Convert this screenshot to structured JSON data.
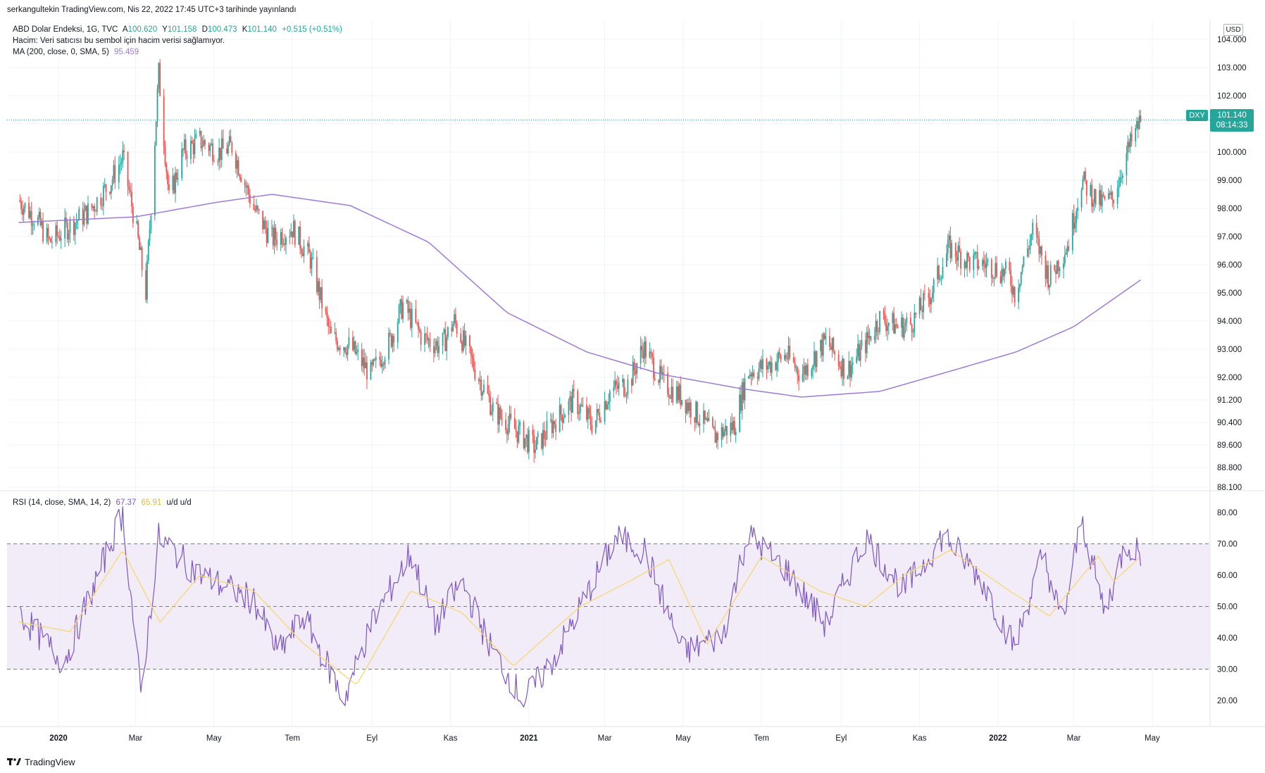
{
  "header": {
    "publish_text": "serkangultekin TradingView.com, Nis 22, 2022 17:45 UTC+3 tarihinde yayınlandı"
  },
  "legend": {
    "symbol": "ABD Dolar Endeksi, 1G, TVC",
    "open_label": "A",
    "open_value": "100.620",
    "high_label": "Y",
    "high_value": "101.158",
    "low_label": "D",
    "low_value": "100.473",
    "close_label": "K",
    "close_value": "101.140",
    "change": "+0.515 (+0.51%)",
    "volume_note": "Hacim: Veri satıcısı bu sembol için hacim verisi sağlamıyor.",
    "ma_label": "MA (200, close, 0, SMA, 5)",
    "ma_value": "95.459",
    "rsi_label": "RSI (14, close, SMA, 14, 2)",
    "rsi_value": "67.37",
    "rsi_ma_value": "65.91",
    "rsi_extra": "u/d  u/d"
  },
  "price_axis": {
    "currency": "USD"
  },
  "last_price": {
    "symbol": "DXY",
    "price": "101.140",
    "countdown": "08:14:33"
  },
  "footer": {
    "brand": "TradingView"
  },
  "colors": {
    "up": "#26a69a",
    "down": "#ef5350",
    "ma": "#9f79d9",
    "rsi": "#7e57c2",
    "rsi_ma": "#f7d774",
    "rsi_band": "#ede7f6"
  },
  "chart_data": [
    {
      "type": "candlestick",
      "ylim": [
        88.1,
        104.0
      ],
      "y_ticks": [
        "104.000",
        "103.000",
        "102.000",
        "101.000",
        "100.000",
        "99.000",
        "98.000",
        "97.000",
        "96.000",
        "95.000",
        "94.000",
        "93.000",
        "92.000",
        "91.200",
        "90.400",
        "89.600",
        "88.800",
        "88.100"
      ],
      "x_ticks": [
        "2020",
        "Mar",
        "May",
        "Tem",
        "Eyl",
        "Kas",
        "2021",
        "Mar",
        "May",
        "Tem",
        "Eyl",
        "Kas",
        "2022",
        "Mar",
        "May"
      ],
      "close_path": [
        [
          "2019-12-01",
          98.3
        ],
        [
          "2019-12-15",
          97.6
        ],
        [
          "2019-12-25",
          96.8
        ],
        [
          "2020-01-10",
          97.4
        ],
        [
          "2020-01-25",
          97.9
        ],
        [
          "2020-02-10",
          98.9
        ],
        [
          "2020-02-20",
          99.8
        ],
        [
          "2020-03-01",
          97.4
        ],
        [
          "2020-03-09",
          95.0
        ],
        [
          "2020-03-19",
          102.8
        ],
        [
          "2020-03-27",
          98.3
        ],
        [
          "2020-04-07",
          100.0
        ],
        [
          "2020-04-20",
          100.4
        ],
        [
          "2020-05-05",
          100.0
        ],
        [
          "2020-05-15",
          100.2
        ],
        [
          "2020-06-01",
          98.0
        ],
        [
          "2020-06-15",
          96.9
        ],
        [
          "2020-07-01",
          97.3
        ],
        [
          "2020-07-15",
          96.2
        ],
        [
          "2020-07-31",
          93.4
        ],
        [
          "2020-08-15",
          93.1
        ],
        [
          "2020-08-31",
          92.1
        ],
        [
          "2020-09-15",
          93.3
        ],
        [
          "2020-09-25",
          94.6
        ],
        [
          "2020-10-10",
          93.4
        ],
        [
          "2020-10-25",
          93.1
        ],
        [
          "2020-11-04",
          94.0
        ],
        [
          "2020-11-20",
          92.3
        ],
        [
          "2020-12-05",
          90.8
        ],
        [
          "2020-12-20",
          90.2
        ],
        [
          "2021-01-06",
          89.5
        ],
        [
          "2021-01-20",
          90.4
        ],
        [
          "2021-02-05",
          91.2
        ],
        [
          "2021-02-20",
          90.3
        ],
        [
          "2021-03-05",
          91.5
        ],
        [
          "2021-03-20",
          91.8
        ],
        [
          "2021-03-31",
          93.1
        ],
        [
          "2021-04-15",
          91.8
        ],
        [
          "2021-04-30",
          91.3
        ],
        [
          "2021-05-15",
          90.5
        ],
        [
          "2021-05-25",
          89.9
        ],
        [
          "2021-06-10",
          90.3
        ],
        [
          "2021-06-20",
          92.2
        ],
        [
          "2021-07-05",
          92.4
        ],
        [
          "2021-07-20",
          92.8
        ],
        [
          "2021-08-01",
          92.1
        ],
        [
          "2021-08-20",
          93.3
        ],
        [
          "2021-09-05",
          92.2
        ],
        [
          "2021-09-20",
          93.2
        ],
        [
          "2021-10-01",
          94.1
        ],
        [
          "2021-10-15",
          93.8
        ],
        [
          "2021-10-25",
          93.9
        ],
        [
          "2021-11-10",
          95.0
        ],
        [
          "2021-11-24",
          96.6
        ],
        [
          "2021-12-10",
          96.1
        ],
        [
          "2021-12-25",
          96.0
        ],
        [
          "2022-01-10",
          95.6
        ],
        [
          "2022-01-14",
          95.0
        ],
        [
          "2022-01-28",
          97.2
        ],
        [
          "2022-02-10",
          95.5
        ],
        [
          "2022-02-25",
          96.8
        ],
        [
          "2022-03-07",
          99.0
        ],
        [
          "2022-03-20",
          98.2
        ],
        [
          "2022-03-31",
          98.3
        ],
        [
          "2022-04-10",
          99.8
        ],
        [
          "2022-04-22",
          101.14
        ]
      ],
      "ma_path": [
        [
          "2019-12-01",
          97.5
        ],
        [
          "2020-03-01",
          97.7
        ],
        [
          "2020-05-01",
          98.2
        ],
        [
          "2020-06-15",
          98.5
        ],
        [
          "2020-08-15",
          98.1
        ],
        [
          "2020-10-15",
          96.8
        ],
        [
          "2020-12-15",
          94.3
        ],
        [
          "2021-02-15",
          92.9
        ],
        [
          "2021-04-15",
          92.1
        ],
        [
          "2021-06-15",
          91.6
        ],
        [
          "2021-08-01",
          91.3
        ],
        [
          "2021-10-01",
          91.5
        ],
        [
          "2021-12-01",
          92.3
        ],
        [
          "2022-01-15",
          92.9
        ],
        [
          "2022-03-01",
          93.8
        ],
        [
          "2022-04-22",
          95.46
        ]
      ]
    },
    {
      "type": "line",
      "ylim": [
        11,
        83
      ],
      "y_ticks": [
        "80.00",
        "70.00",
        "60.00",
        "50.00",
        "40.00",
        "30.00",
        "20.00"
      ],
      "levels": [
        70,
        50,
        30
      ],
      "series": [
        {
          "name": "RSI",
          "values": [
            [
              "2019-12-01",
              48
            ],
            [
              "2020-01-05",
              32
            ],
            [
              "2020-02-20",
              80
            ],
            [
              "2020-03-05",
              22
            ],
            [
              "2020-03-19",
              72
            ],
            [
              "2020-04-20",
              60
            ],
            [
              "2020-06-01",
              52
            ],
            [
              "2020-06-20",
              35
            ],
            [
              "2020-07-10",
              47
            ],
            [
              "2020-08-10",
              20
            ],
            [
              "2020-09-01",
              45
            ],
            [
              "2020-10-01",
              67
            ],
            [
              "2020-10-20",
              44
            ],
            [
              "2020-11-10",
              58
            ],
            [
              "2020-12-01",
              38
            ],
            [
              "2020-12-28",
              20
            ],
            [
              "2021-01-20",
              33
            ],
            [
              "2021-03-10",
              72
            ],
            [
              "2021-04-01",
              68
            ],
            [
              "2021-05-01",
              35
            ],
            [
              "2021-06-01",
              41
            ],
            [
              "2021-06-20",
              73
            ],
            [
              "2021-07-20",
              62
            ],
            [
              "2021-08-20",
              44
            ],
            [
              "2021-09-20",
              72
            ],
            [
              "2021-10-20",
              55
            ],
            [
              "2021-11-20",
              73
            ],
            [
              "2021-12-20",
              58
            ],
            [
              "2022-01-14",
              37
            ],
            [
              "2022-02-05",
              67
            ],
            [
              "2022-02-20",
              44
            ],
            [
              "2022-03-07",
              78
            ],
            [
              "2022-03-25",
              48
            ],
            [
              "2022-04-10",
              70
            ],
            [
              "2022-04-22",
              67.37
            ]
          ]
        },
        {
          "name": "RSI MA",
          "values": [
            [
              "2019-12-01",
              45
            ],
            [
              "2020-01-10",
              42
            ],
            [
              "2020-02-20",
              68
            ],
            [
              "2020-03-20",
              45
            ],
            [
              "2020-04-20",
              60
            ],
            [
              "2020-06-01",
              55
            ],
            [
              "2020-07-10",
              38
            ],
            [
              "2020-08-20",
              25
            ],
            [
              "2020-10-01",
              55
            ],
            [
              "2020-11-10",
              48
            ],
            [
              "2020-12-20",
              31
            ],
            [
              "2021-02-10",
              50
            ],
            [
              "2021-03-20",
              58
            ],
            [
              "2021-04-20",
              65
            ],
            [
              "2021-05-20",
              38
            ],
            [
              "2021-07-01",
              66
            ],
            [
              "2021-08-15",
              55
            ],
            [
              "2021-09-20",
              50
            ],
            [
              "2021-10-20",
              60
            ],
            [
              "2021-11-25",
              68
            ],
            [
              "2022-01-10",
              55
            ],
            [
              "2022-02-10",
              47
            ],
            [
              "2022-03-20",
              66
            ],
            [
              "2022-04-01",
              58
            ],
            [
              "2022-04-22",
              65.91
            ]
          ]
        }
      ]
    }
  ]
}
